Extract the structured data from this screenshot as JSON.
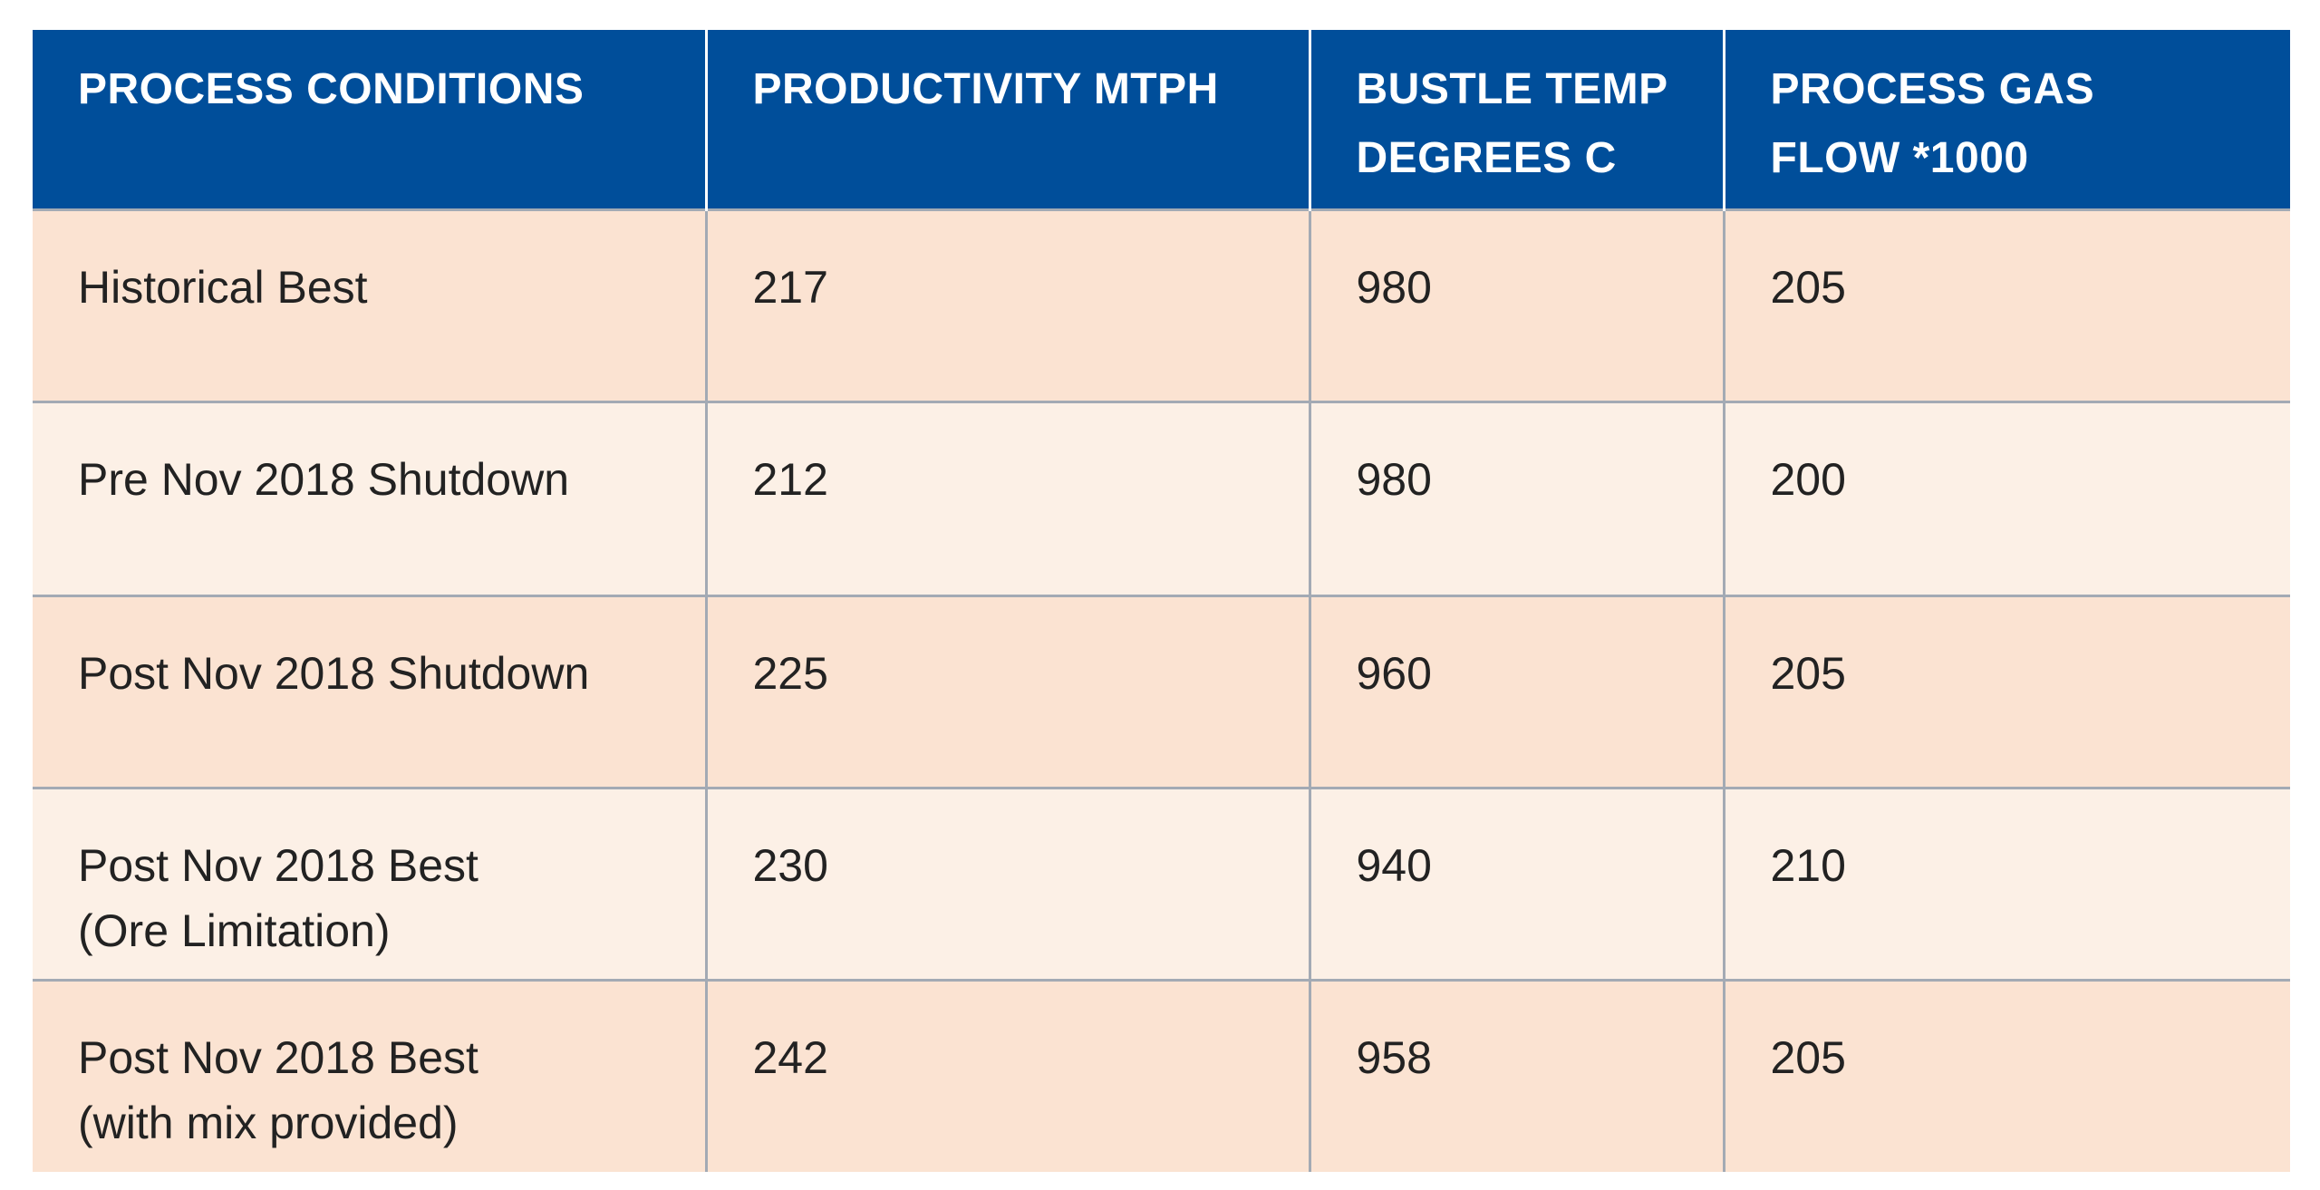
{
  "table": {
    "headers": [
      [
        "PROCESS CONDITIONS"
      ],
      [
        "PRODUCTIVITY MTPH"
      ],
      [
        "BUSTLE TEMP",
        "DEGREES C"
      ],
      [
        "PROCESS GAS",
        "FLOW *1000"
      ]
    ],
    "rows": [
      {
        "condition": [
          "Historical Best"
        ],
        "productivity": "217",
        "bustle_temp": "980",
        "gas_flow": "205"
      },
      {
        "condition": [
          "Pre Nov 2018 Shutdown"
        ],
        "productivity": "212",
        "bustle_temp": "980",
        "gas_flow": "200"
      },
      {
        "condition": [
          "Post Nov 2018 Shutdown"
        ],
        "productivity": "225",
        "bustle_temp": "960",
        "gas_flow": "205"
      },
      {
        "condition": [
          "Post Nov 2018 Best",
          "(Ore Limitation)"
        ],
        "productivity": "230",
        "bustle_temp": "940",
        "gas_flow": "210"
      },
      {
        "condition": [
          "Post Nov 2018 Best",
          "(with mix provided)"
        ],
        "productivity": "242",
        "bustle_temp": "958",
        "gas_flow": "205"
      }
    ]
  },
  "colors": {
    "header_bg": "#004e9a",
    "row_dark": "#fbe3d2",
    "row_light": "#fcf0e6",
    "grid": "#a3aab4"
  }
}
